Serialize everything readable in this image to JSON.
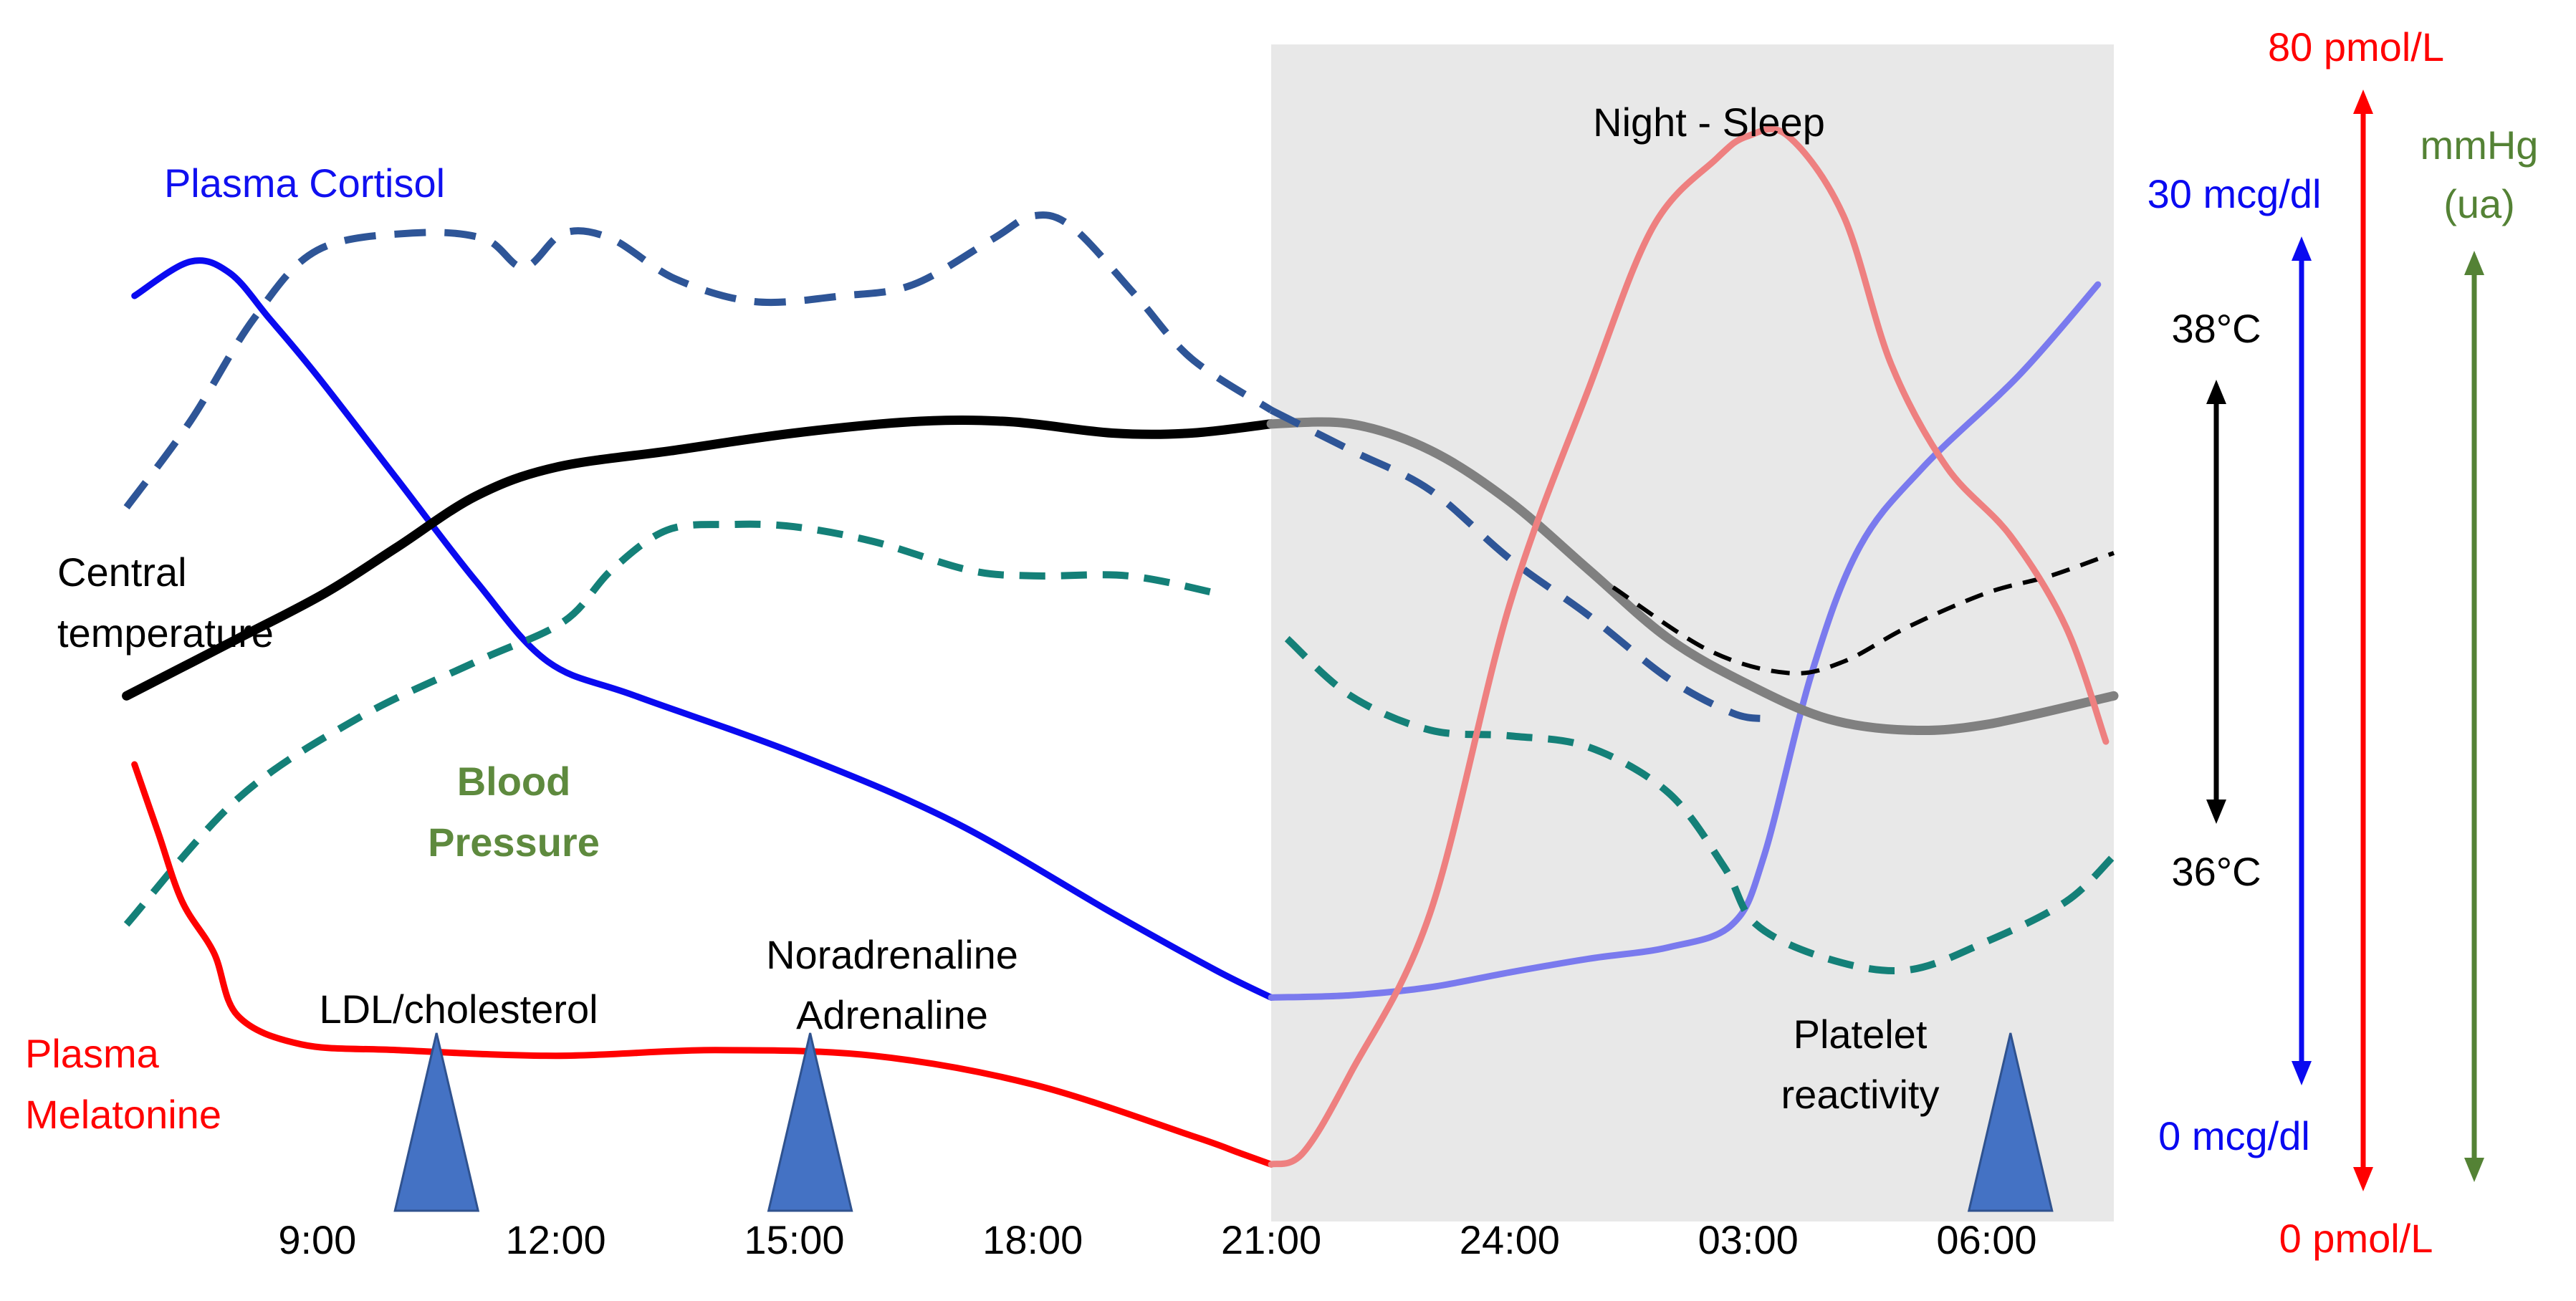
{
  "chart_data": {
    "type": "line",
    "title": "",
    "background": "#ffffff",
    "night_band": {
      "label": "Night - Sleep",
      "from": 21,
      "to": 31.6,
      "color": "#e8e8e8"
    },
    "x_axis": {
      "unit": "hour of day (continuous, 24 = midnight)",
      "range": [
        6.0,
        31.6
      ],
      "ticks": [
        {
          "value": 9,
          "label": "9:00"
        },
        {
          "value": 12,
          "label": "12:00"
        },
        {
          "value": 15,
          "label": "15:00"
        },
        {
          "value": 18,
          "label": "18:00"
        },
        {
          "value": 21,
          "label": "21:00"
        },
        {
          "value": 24,
          "label": "24:00"
        },
        {
          "value": 27,
          "label": "03:00"
        },
        {
          "value": 30,
          "label": "06:00"
        }
      ]
    },
    "y_range": [
      0,
      100
    ],
    "series": [
      {
        "name": "Plasma Cortisol",
        "color": "#0a0af0",
        "night_color": "#7a7aee",
        "dash": false,
        "width": 9,
        "label_text": "Plasma Cortisol",
        "label_color": "#1010f0",
        "points": [
          [
            6.7,
            81
          ],
          [
            7.4,
            84
          ],
          [
            7.9,
            83
          ],
          [
            8.4,
            79
          ],
          [
            9,
            74
          ],
          [
            10,
            65
          ],
          [
            11,
            56
          ],
          [
            11.9,
            49
          ],
          [
            13,
            46
          ],
          [
            15,
            41
          ],
          [
            17,
            35
          ],
          [
            19,
            27
          ],
          [
            20.3,
            22
          ],
          [
            21,
            19.6
          ],
          [
            22,
            19.8
          ],
          [
            23,
            20.5
          ],
          [
            24,
            21.8
          ],
          [
            25,
            23
          ],
          [
            26,
            24
          ],
          [
            26.8,
            26
          ],
          [
            27.2,
            32
          ],
          [
            27.8,
            48
          ],
          [
            28.4,
            59
          ],
          [
            29.2,
            66
          ],
          [
            30.4,
            74
          ],
          [
            31.4,
            82
          ]
        ]
      },
      {
        "name": "Central temperature",
        "color": "#000000",
        "night_color": "#808080",
        "dash": false,
        "width": 13,
        "label_text": [
          "Central",
          "temperature"
        ],
        "label_color": "#000000",
        "points": [
          [
            6.6,
            46
          ],
          [
            8,
            51
          ],
          [
            9.1,
            55
          ],
          [
            10,
            59
          ],
          [
            11,
            63.5
          ],
          [
            12,
            66
          ],
          [
            13.5,
            67.5
          ],
          [
            15,
            69
          ],
          [
            16.5,
            70
          ],
          [
            17.7,
            70
          ],
          [
            19,
            69
          ],
          [
            20,
            69
          ],
          [
            21,
            69.8
          ],
          [
            22,
            69.8
          ],
          [
            23,
            67.5
          ],
          [
            24,
            63
          ],
          [
            25,
            57
          ],
          [
            26,
            51
          ],
          [
            27,
            47
          ],
          [
            28,
            44
          ],
          [
            29,
            43
          ],
          [
            30,
            43.5
          ],
          [
            31.6,
            46
          ]
        ]
      },
      {
        "name": "Central temperature (dashed)",
        "color": "#000000",
        "night_color": "#000000",
        "dash": true,
        "dash_pattern": "26 16",
        "width": 6,
        "label_text": null,
        "points": [
          [
            25.3,
            55.5
          ],
          [
            26.5,
            50
          ],
          [
            27.5,
            48
          ],
          [
            28.2,
            49
          ],
          [
            29,
            52
          ],
          [
            30,
            55
          ],
          [
            30.8,
            56.5
          ],
          [
            31.6,
            58.5
          ]
        ]
      },
      {
        "name": "Blood Pressure (upper)",
        "color": "#2e5597",
        "night_color": "#2e5597",
        "dash": true,
        "dash_pattern": "44 26",
        "width": 10,
        "label_text": null,
        "points": [
          [
            6.6,
            62.5
          ],
          [
            7.4,
            70
          ],
          [
            8.2,
            79
          ],
          [
            9,
            85
          ],
          [
            10.2,
            86.5
          ],
          [
            11.1,
            86
          ],
          [
            11.6,
            83.5
          ],
          [
            12.1,
            86.5
          ],
          [
            12.7,
            86
          ],
          [
            13.5,
            82.5
          ],
          [
            14.5,
            80.5
          ],
          [
            15.6,
            81
          ],
          [
            16.5,
            82
          ],
          [
            17.5,
            86
          ],
          [
            18,
            88
          ],
          [
            18.5,
            87
          ],
          [
            19.3,
            81
          ],
          [
            20,
            75.5
          ],
          [
            21,
            71
          ],
          [
            22,
            67.5
          ],
          [
            23,
            64
          ],
          [
            24,
            58
          ],
          [
            25,
            53
          ],
          [
            26,
            47.5
          ],
          [
            26.8,
            44.5
          ],
          [
            27.2,
            44
          ]
        ]
      },
      {
        "name": "Blood Pressure",
        "color": "#148078",
        "night_color": "#148078",
        "dash": true,
        "dash_pattern": "36 22",
        "width": 10,
        "label_text": [
          "Blood",
          "Pressure"
        ],
        "label_color": "#5e8a3e",
        "points": [
          [
            6.6,
            26
          ],
          [
            8,
            37
          ],
          [
            9.5,
            44
          ],
          [
            11,
            49
          ],
          [
            12.1,
            52.5
          ],
          [
            12.7,
            57
          ],
          [
            13.4,
            60.5
          ],
          [
            14.2,
            61
          ],
          [
            15,
            60.8
          ],
          [
            16,
            59.5
          ],
          [
            17.2,
            57
          ],
          [
            18,
            56.5
          ],
          [
            19.2,
            56.5
          ],
          [
            20.3,
            55
          ],
          [
            21.2,
            51
          ],
          [
            22,
            46
          ],
          [
            23,
            43
          ],
          [
            24,
            42.5
          ],
          [
            25,
            41.5
          ],
          [
            26,
            37.5
          ],
          [
            26.7,
            31
          ],
          [
            27.1,
            26
          ],
          [
            28,
            23
          ],
          [
            29,
            22
          ],
          [
            30,
            24.5
          ],
          [
            31,
            28
          ],
          [
            31.6,
            32
          ]
        ]
      },
      {
        "name": "Plasma Melatonine",
        "color": "#ff0000",
        "night_color": "#ee8080",
        "dash": false,
        "width": 9,
        "label_text": [
          "Plasma",
          "Melatonine"
        ],
        "label_color": "#ff0000",
        "points": [
          [
            6.7,
            40
          ],
          [
            7,
            34
          ],
          [
            7.3,
            28
          ],
          [
            7.7,
            23.5
          ],
          [
            8,
            18
          ],
          [
            8.8,
            15.5
          ],
          [
            10,
            15
          ],
          [
            12,
            14.5
          ],
          [
            14,
            15
          ],
          [
            16,
            14.5
          ],
          [
            18,
            12
          ],
          [
            20,
            7.5
          ],
          [
            20.6,
            6
          ],
          [
            21,
            5
          ],
          [
            21.4,
            6
          ],
          [
            22,
            13
          ],
          [
            23,
            27
          ],
          [
            24,
            54
          ],
          [
            25,
            73
          ],
          [
            25.8,
            87
          ],
          [
            26.6,
            93
          ],
          [
            27,
            95
          ],
          [
            27.5,
            95
          ],
          [
            28.2,
            88
          ],
          [
            28.8,
            75
          ],
          [
            29.5,
            66
          ],
          [
            30.3,
            60
          ],
          [
            31,
            52
          ],
          [
            31.5,
            42
          ]
        ]
      }
    ],
    "markers": [
      {
        "x": 10.5,
        "label": [
          "LDL/cholesterol"
        ],
        "color": "#4472c4"
      },
      {
        "x": 15.2,
        "label": [
          "Noradrenaline",
          "Adrenaline"
        ],
        "color": "#4472c4"
      },
      {
        "x": 30.3,
        "label": [
          "Platelet",
          "reactivity"
        ],
        "color": "#4472c4"
      }
    ],
    "scales": [
      {
        "name": "temperature",
        "color": "#000000",
        "top_label": "38°C",
        "bottom_label": "36°C",
        "top_value": 38,
        "bottom_value": 36
      },
      {
        "name": "cortisol",
        "color": "#0a0af0",
        "top_label": "30 mcg/dl",
        "bottom_label": "0 mcg/dl",
        "top_value": 30,
        "bottom_value": 0
      },
      {
        "name": "melatonine",
        "color": "#ff0000",
        "top_label": "80 pmol/L",
        "bottom_label": "0 pmol/L",
        "top_value": 80,
        "bottom_value": 0
      },
      {
        "name": "blood-pressure",
        "color": "#548235",
        "top_label": [
          "mmHg",
          "(ua)"
        ],
        "bottom_label": "",
        "unit": "mmHg (ua)"
      }
    ]
  }
}
